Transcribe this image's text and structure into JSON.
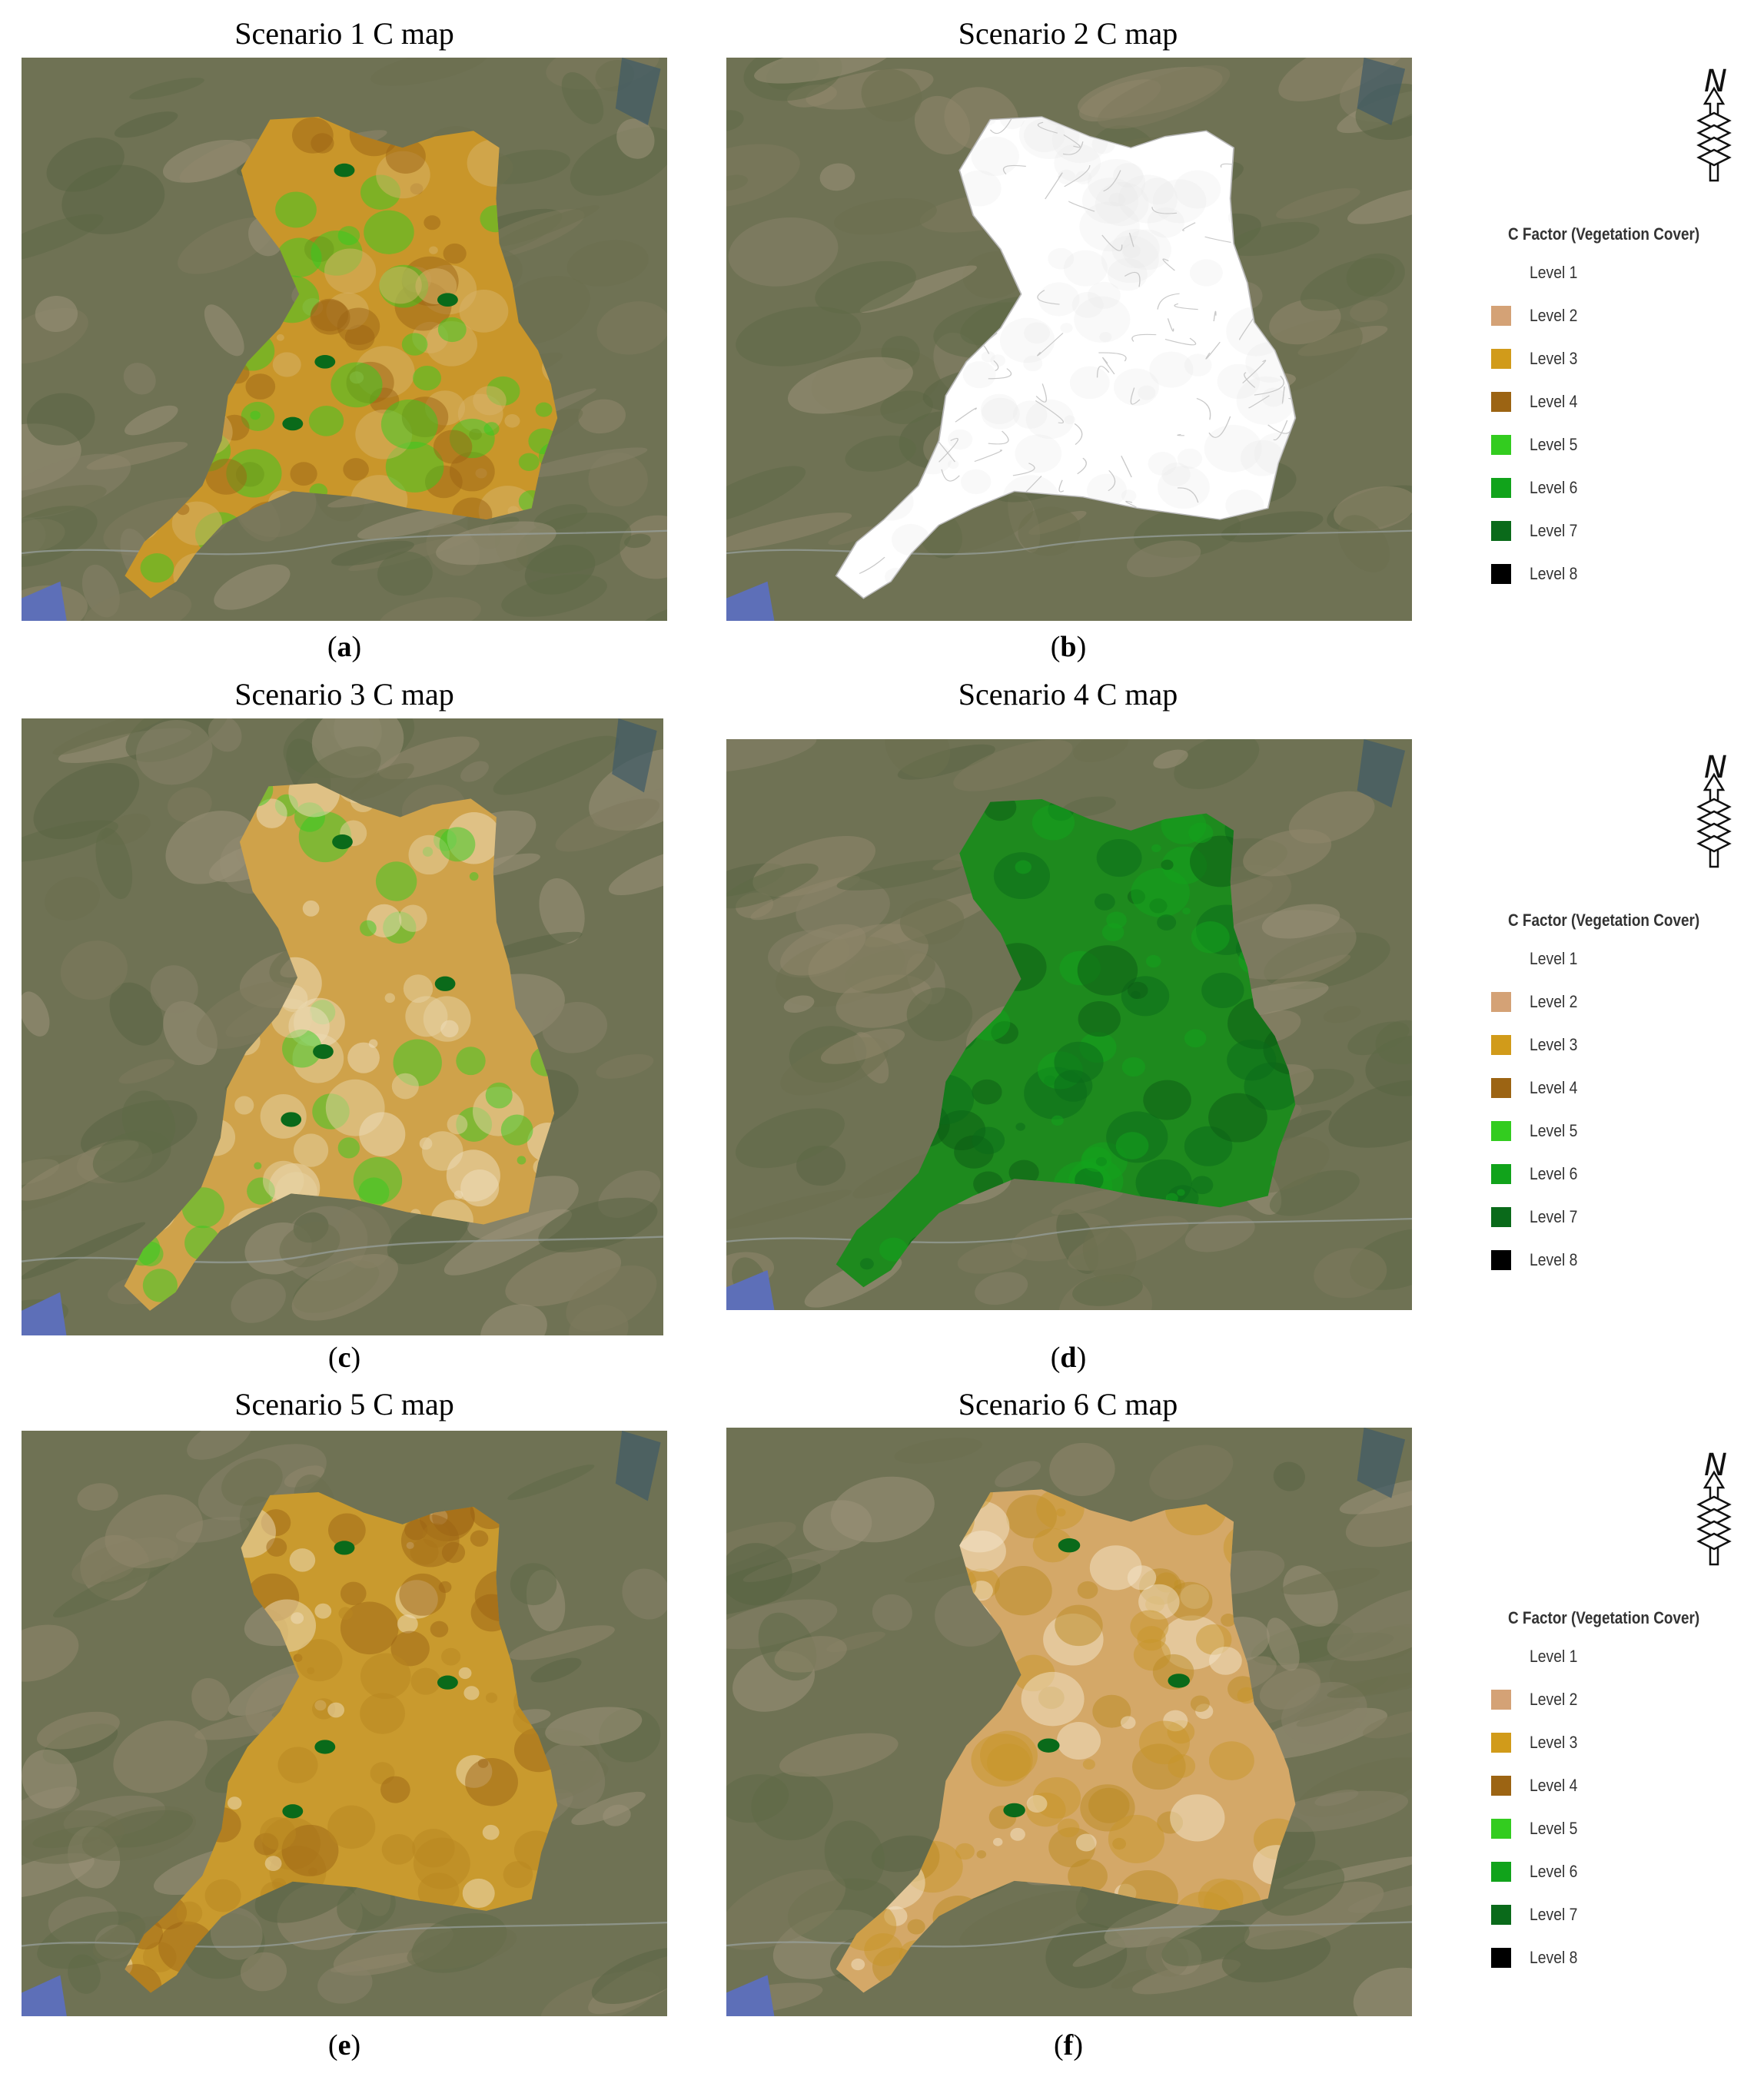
{
  "panels": [
    {
      "title": "Scenario 1 C map",
      "caption_letter": "a",
      "fill": "#c9962a",
      "variant": "s1"
    },
    {
      "title": "Scenario 2 C map",
      "caption_letter": "b",
      "fill": "#ffffff",
      "variant": "s2"
    },
    {
      "title": "Scenario 3 C map",
      "caption_letter": "c",
      "fill": "#cfa24a",
      "variant": "s3"
    },
    {
      "title": "Scenario 4 C map",
      "caption_letter": "d",
      "fill": "#1e8a1e",
      "variant": "s4"
    },
    {
      "title": "Scenario 5 C map",
      "caption_letter": "e",
      "fill": "#c99a2e",
      "variant": "s5"
    },
    {
      "title": "Scenario 6 C map",
      "caption_letter": "f",
      "fill": "#d4a868",
      "variant": "s6"
    }
  ],
  "legend": {
    "title": "C Factor (Vegetation Cover)",
    "north_label": "N",
    "items": [
      {
        "label": "Level 1",
        "color": "#ffffff"
      },
      {
        "label": "Level 2",
        "color": "#d4a276"
      },
      {
        "label": "Level 3",
        "color": "#d19b1a"
      },
      {
        "label": "Level 4",
        "color": "#9c6413"
      },
      {
        "label": "Level 5",
        "color": "#33cc1f"
      },
      {
        "label": "Level 6",
        "color": "#11a31b"
      },
      {
        "label": "Level 7",
        "color": "#0a6a1a"
      },
      {
        "label": "Level 8",
        "color": "#000000"
      }
    ]
  },
  "colors": {
    "satellite_base": "#6f7254",
    "water": "#5d6fb8",
    "basin_outline": "#b8b8b8"
  }
}
